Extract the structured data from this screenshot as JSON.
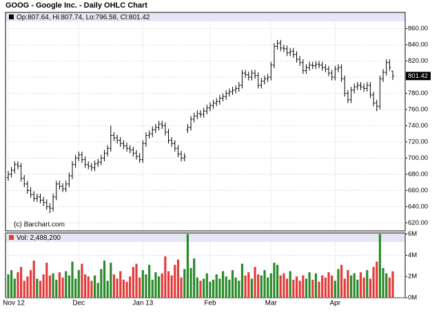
{
  "chart_data": [
    {
      "type": "ohlc",
      "title": "GOOG - Google Inc. - Daily OHLC Chart",
      "legend_text": "Op:807.64, Hi:807.74, Lo:796.58, Cl:801.42",
      "source": "(c) Barchart.com",
      "color": "#000000",
      "open": [
        676,
        680,
        685,
        692,
        690,
        675,
        668,
        660,
        655,
        650,
        652,
        648,
        645,
        640,
        638,
        652,
        668,
        665,
        662,
        668,
        678,
        692,
        700,
        704,
        698,
        692,
        690,
        688,
        693,
        695,
        700,
        706,
        712,
        728,
        725,
        722,
        718,
        715,
        712,
        710,
        706,
        702,
        698,
        718,
        728,
        730,
        735,
        738,
        742,
        740,
        732,
        722,
        718,
        712,
        705,
        700,
        735,
        738,
        748,
        752,
        755,
        754,
        758,
        762,
        765,
        768,
        770,
        774,
        776,
        780,
        782,
        784,
        786,
        790,
        805,
        803,
        800,
        805,
        802,
        790,
        795,
        798,
        800,
        815,
        838,
        842,
        836,
        835,
        830,
        832,
        828,
        822,
        818,
        808,
        812,
        815,
        814,
        816,
        815,
        812,
        810,
        805,
        800,
        810,
        812,
        798,
        780,
        772,
        784,
        788,
        790,
        788,
        786,
        790,
        778,
        768,
        764,
        798,
        806,
        818,
        807.64
      ],
      "high": [
        684,
        689,
        696,
        696,
        694,
        679,
        672,
        664,
        659,
        656,
        656,
        652,
        649,
        644,
        656,
        672,
        672,
        669,
        672,
        682,
        696,
        704,
        708,
        708,
        702,
        696,
        694,
        697,
        699,
        704,
        710,
        716,
        740,
        732,
        729,
        726,
        722,
        719,
        716,
        714,
        710,
        706,
        722,
        732,
        734,
        739,
        742,
        746,
        746,
        744,
        736,
        726,
        722,
        716,
        709,
        706,
        742,
        752,
        756,
        759,
        759,
        762,
        766,
        769,
        772,
        774,
        778,
        780,
        784,
        786,
        788,
        790,
        794,
        809,
        809,
        807,
        809,
        809,
        806,
        799,
        802,
        804,
        819,
        842,
        846,
        846,
        840,
        839,
        836,
        836,
        832,
        826,
        822,
        816,
        819,
        819,
        820,
        820,
        819,
        816,
        814,
        809,
        814,
        816,
        816,
        802,
        784,
        788,
        792,
        794,
        794,
        792,
        794,
        794,
        782,
        772,
        802,
        810,
        822,
        822,
        807.74
      ],
      "low": [
        672,
        676,
        681,
        686,
        671,
        664,
        656,
        651,
        646,
        646,
        644,
        641,
        636,
        632,
        634,
        648,
        661,
        658,
        658,
        664,
        674,
        688,
        696,
        694,
        688,
        686,
        684,
        684,
        689,
        691,
        696,
        702,
        708,
        721,
        718,
        714,
        711,
        708,
        706,
        702,
        698,
        694,
        694,
        714,
        724,
        726,
        731,
        734,
        736,
        728,
        718,
        714,
        708,
        701,
        696,
        696,
        731,
        734,
        744,
        748,
        750,
        750,
        754,
        758,
        761,
        764,
        766,
        770,
        772,
        776,
        778,
        780,
        782,
        786,
        799,
        796,
        796,
        798,
        786,
        786,
        791,
        794,
        796,
        811,
        834,
        832,
        831,
        826,
        826,
        824,
        818,
        814,
        804,
        804,
        808,
        810,
        810,
        811,
        808,
        806,
        801,
        796,
        796,
        806,
        794,
        776,
        768,
        768,
        780,
        784,
        784,
        782,
        782,
        774,
        764,
        758,
        760,
        794,
        802,
        808,
        796.58
      ],
      "close": [
        680,
        685,
        692,
        690,
        675,
        668,
        660,
        655,
        650,
        652,
        648,
        645,
        640,
        638,
        652,
        668,
        665,
        662,
        668,
        678,
        692,
        700,
        704,
        698,
        692,
        690,
        688,
        693,
        695,
        700,
        706,
        712,
        728,
        725,
        722,
        718,
        715,
        712,
        710,
        706,
        702,
        698,
        718,
        728,
        730,
        735,
        738,
        742,
        740,
        732,
        722,
        718,
        712,
        705,
        700,
        702,
        738,
        748,
        752,
        755,
        754,
        758,
        762,
        765,
        768,
        770,
        774,
        776,
        780,
        782,
        784,
        786,
        790,
        805,
        803,
        800,
        805,
        802,
        790,
        795,
        798,
        800,
        815,
        838,
        842,
        836,
        835,
        830,
        832,
        828,
        822,
        818,
        808,
        812,
        815,
        814,
        816,
        815,
        812,
        810,
        805,
        800,
        810,
        812,
        798,
        780,
        772,
        784,
        788,
        790,
        788,
        786,
        790,
        778,
        768,
        764,
        798,
        806,
        818,
        812,
        801.42
      ],
      "ylim": [
        610,
        880
      ],
      "yticks": [
        {
          "value": 620,
          "label": "620.00"
        },
        {
          "value": 640,
          "label": "640.00"
        },
        {
          "value": 660,
          "label": "660.00"
        },
        {
          "value": 680,
          "label": "680.00"
        },
        {
          "value": 700,
          "label": "700.00"
        },
        {
          "value": 720,
          "label": "720.00"
        },
        {
          "value": 740,
          "label": "740.00"
        },
        {
          "value": 760,
          "label": "760.00"
        },
        {
          "value": 780,
          "label": "780.00"
        },
        {
          "value": 800,
          "label": "800.00"
        },
        {
          "value": 820,
          "label": "820.00"
        },
        {
          "value": 840,
          "label": "840.00"
        },
        {
          "value": 860,
          "label": "860.00"
        }
      ],
      "grid": true
    },
    {
      "type": "volume",
      "legend_text": "Vol: 2,488,200",
      "up_color": "#2a8a2a",
      "down_color": "#e23b3b",
      "categories": [
        "Nov 12",
        null,
        null,
        null,
        null,
        null,
        null,
        null,
        null,
        null,
        null,
        null,
        null,
        null,
        null,
        null,
        null,
        null,
        null,
        null,
        null,
        null,
        "Dec",
        null,
        null,
        null,
        null,
        null,
        null,
        null,
        null,
        null,
        null,
        null,
        null,
        null,
        null,
        null,
        null,
        null,
        null,
        null,
        "Jan 13",
        null,
        null,
        null,
        null,
        null,
        null,
        null,
        null,
        null,
        null,
        null,
        null,
        null,
        null,
        null,
        null,
        null,
        null,
        null,
        null,
        "Feb",
        null,
        null,
        null,
        null,
        null,
        null,
        null,
        null,
        null,
        null,
        null,
        null,
        null,
        null,
        null,
        null,
        null,
        null,
        "Mar",
        null,
        null,
        null,
        null,
        null,
        null,
        null,
        null,
        null,
        null,
        null,
        null,
        null,
        null,
        null,
        null,
        null,
        null,
        null,
        "Apr",
        null,
        null,
        null,
        null,
        null,
        null,
        null,
        null,
        null,
        null,
        null,
        null,
        null,
        null,
        null,
        null,
        null,
        null
      ],
      "values": [
        2.2,
        2.6,
        1.8,
        2.4,
        2.9,
        1.6,
        2.0,
        2.6,
        3.5,
        1.8,
        1.6,
        2.2,
        3.3,
        2.1,
        2.3,
        1.7,
        2.4,
        1.9,
        2.5,
        2.1,
        3.4,
        1.8,
        2.6,
        3.2,
        2.2,
        2.0,
        1.6,
        2.1,
        1.4,
        2.7,
        3.5,
        1.6,
        3.3,
        2.2,
        1.8,
        2.5,
        1.7,
        1.5,
        2.0,
        2.9,
        3.2,
        1.9,
        2.6,
        2.2,
        3.1,
        1.7,
        2.4,
        2.0,
        2.3,
        3.9,
        2.5,
        2.1,
        3.1,
        3.6,
        1.9,
        2.7,
        6.0,
        2.8,
        3.7,
        1.9,
        1.6,
        1.8,
        2.3,
        1.5,
        1.7,
        2.2,
        1.8,
        2.5,
        2.0,
        1.7,
        2.6,
        1.9,
        1.6,
        3.2,
        2.1,
        2.4,
        1.8,
        2.9,
        2.2,
        2.1,
        2.6,
        1.9,
        2.3,
        3.3,
        3.1,
        2.1,
        2.3,
        1.8,
        2.5,
        1.7,
        2.0,
        1.6,
        2.1,
        1.8,
        2.4,
        1.7,
        2.3,
        1.5,
        2.1,
        1.9,
        2.4,
        2.1,
        1.6,
        2.7,
        3.1,
        1.8,
        2.6,
        2.1,
        2.3,
        1.7,
        2.4,
        1.9,
        2.6,
        1.8,
        2.9,
        3.4,
        6.0,
        2.8,
        2.3,
        1.9,
        2.4882
      ],
      "ylim": [
        0,
        6.1
      ],
      "yticks": [
        {
          "value": 0,
          "label": "0M"
        },
        {
          "value": 2,
          "label": "2M"
        },
        {
          "value": 4,
          "label": "4M"
        },
        {
          "value": 6,
          "label": "6M"
        }
      ],
      "grid": true
    }
  ]
}
